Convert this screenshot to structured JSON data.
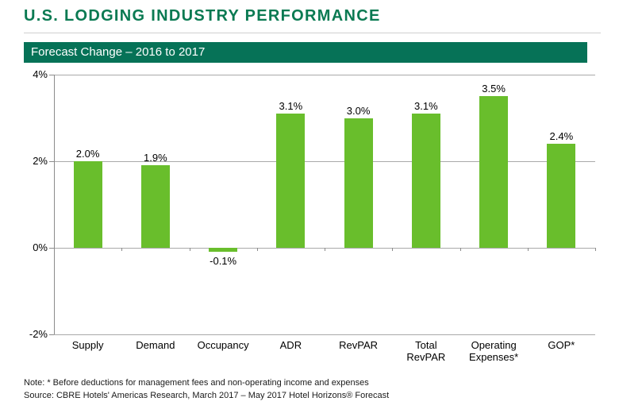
{
  "header": {
    "title": "U.S. LODGING INDUSTRY PERFORMANCE",
    "banner": "Forecast Change – 2016 to 2017"
  },
  "colors": {
    "title_green": "#0a7a52",
    "banner_green": "#067257",
    "bar_green": "#69be2c",
    "gridline": "#a9a9a9",
    "axis": "#8c8c8c"
  },
  "chart_data": {
    "type": "bar",
    "title": "Forecast Change – 2016 to 2017",
    "categories": [
      "Supply",
      "Demand",
      "Occupancy",
      "ADR",
      "RevPAR",
      "Total RevPAR",
      "Operating Expenses*",
      "GOP*"
    ],
    "category_label_lines": [
      [
        "Supply"
      ],
      [
        "Demand"
      ],
      [
        "Occupancy"
      ],
      [
        "ADR"
      ],
      [
        "RevPAR"
      ],
      [
        "Total",
        "RevPAR"
      ],
      [
        "Operating",
        "Expenses*"
      ],
      [
        "GOP*"
      ]
    ],
    "values": [
      2.0,
      1.9,
      -0.1,
      3.1,
      3.0,
      3.1,
      3.5,
      2.4
    ],
    "value_labels": [
      "2.0%",
      "1.9%",
      "-0.1%",
      "3.1%",
      "3.0%",
      "3.1%",
      "3.5%",
      "2.4%"
    ],
    "xlabel": "",
    "ylabel": "",
    "ylim": [
      -2,
      4
    ],
    "yticks": [
      {
        "value": 4,
        "label": "4%"
      },
      {
        "value": 2,
        "label": "2%"
      },
      {
        "value": 0,
        "label": "0%"
      },
      {
        "value": -2,
        "label": "-2%"
      }
    ],
    "grid": true,
    "legend": false,
    "bar_color": "#69be2c"
  },
  "footer": {
    "note": "Note: * Before deductions for management fees and non-operating income and expenses",
    "source": "Source: CBRE Hotels' Americas Research, March 2017 – May 2017 Hotel Horizons® Forecast"
  }
}
